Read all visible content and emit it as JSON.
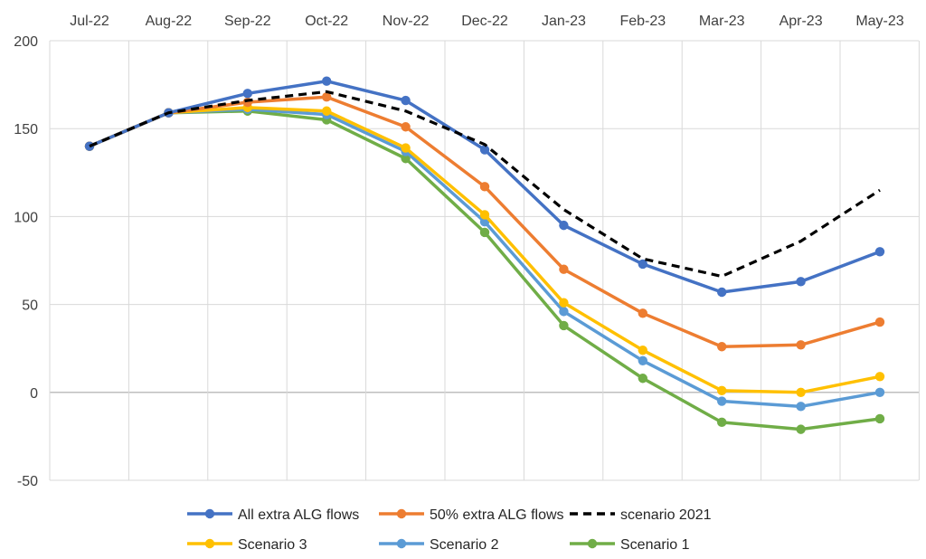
{
  "chart_data": {
    "type": "line",
    "title": "",
    "xlabel": "",
    "ylabel": "",
    "categories": [
      "Jul-22",
      "Aug-22",
      "Sep-22",
      "Oct-22",
      "Nov-22",
      "Dec-22",
      "Jan-23",
      "Feb-23",
      "Mar-23",
      "Apr-23",
      "May-23"
    ],
    "ylim": [
      -50,
      200
    ],
    "yticks": [
      "-50",
      "0",
      "50",
      "100",
      "150",
      "200"
    ],
    "x_axis_position": "top",
    "grid": true,
    "legend_position": "bottom",
    "series": [
      {
        "name": "All extra ALG flows",
        "color": "#4472C4",
        "dashed": false,
        "markers": true,
        "values": [
          140,
          159,
          170,
          177,
          166,
          138,
          95,
          73,
          57,
          63,
          80
        ]
      },
      {
        "name": "50% extra ALG flows",
        "color": "#ED7D31",
        "dashed": false,
        "markers": true,
        "values": [
          140,
          159,
          165,
          168,
          151,
          117,
          70,
          45,
          26,
          27,
          40
        ]
      },
      {
        "name": "scenario 2021",
        "color": "#000000",
        "dashed": true,
        "markers": false,
        "values": [
          140,
          159,
          166,
          171,
          160,
          141,
          104,
          76,
          66,
          86,
          115
        ]
      },
      {
        "name": "Scenario 3",
        "color": "#FFC000",
        "dashed": false,
        "markers": true,
        "values": [
          140,
          159,
          162,
          160,
          139,
          101,
          51,
          24,
          1,
          0,
          9
        ]
      },
      {
        "name": "Scenario 2",
        "color": "#5B9BD5",
        "dashed": false,
        "markers": true,
        "values": [
          140,
          159,
          161,
          158,
          137,
          97,
          46,
          18,
          -5,
          -8,
          0
        ]
      },
      {
        "name": "Scenario 1",
        "color": "#70AD47",
        "dashed": false,
        "markers": true,
        "values": [
          140,
          159,
          160,
          155,
          133,
          91,
          38,
          8,
          -17,
          -21,
          -15
        ]
      }
    ],
    "legend_order": [
      [
        "All extra ALG flows",
        "50% extra ALG flows",
        "scenario 2021"
      ],
      [
        "Scenario 3",
        "Scenario 2",
        "Scenario 1"
      ]
    ]
  },
  "colors": {
    "grid": "#D9D9D9",
    "zero_line": "#BFBFBF",
    "tick_text": "#404040"
  }
}
